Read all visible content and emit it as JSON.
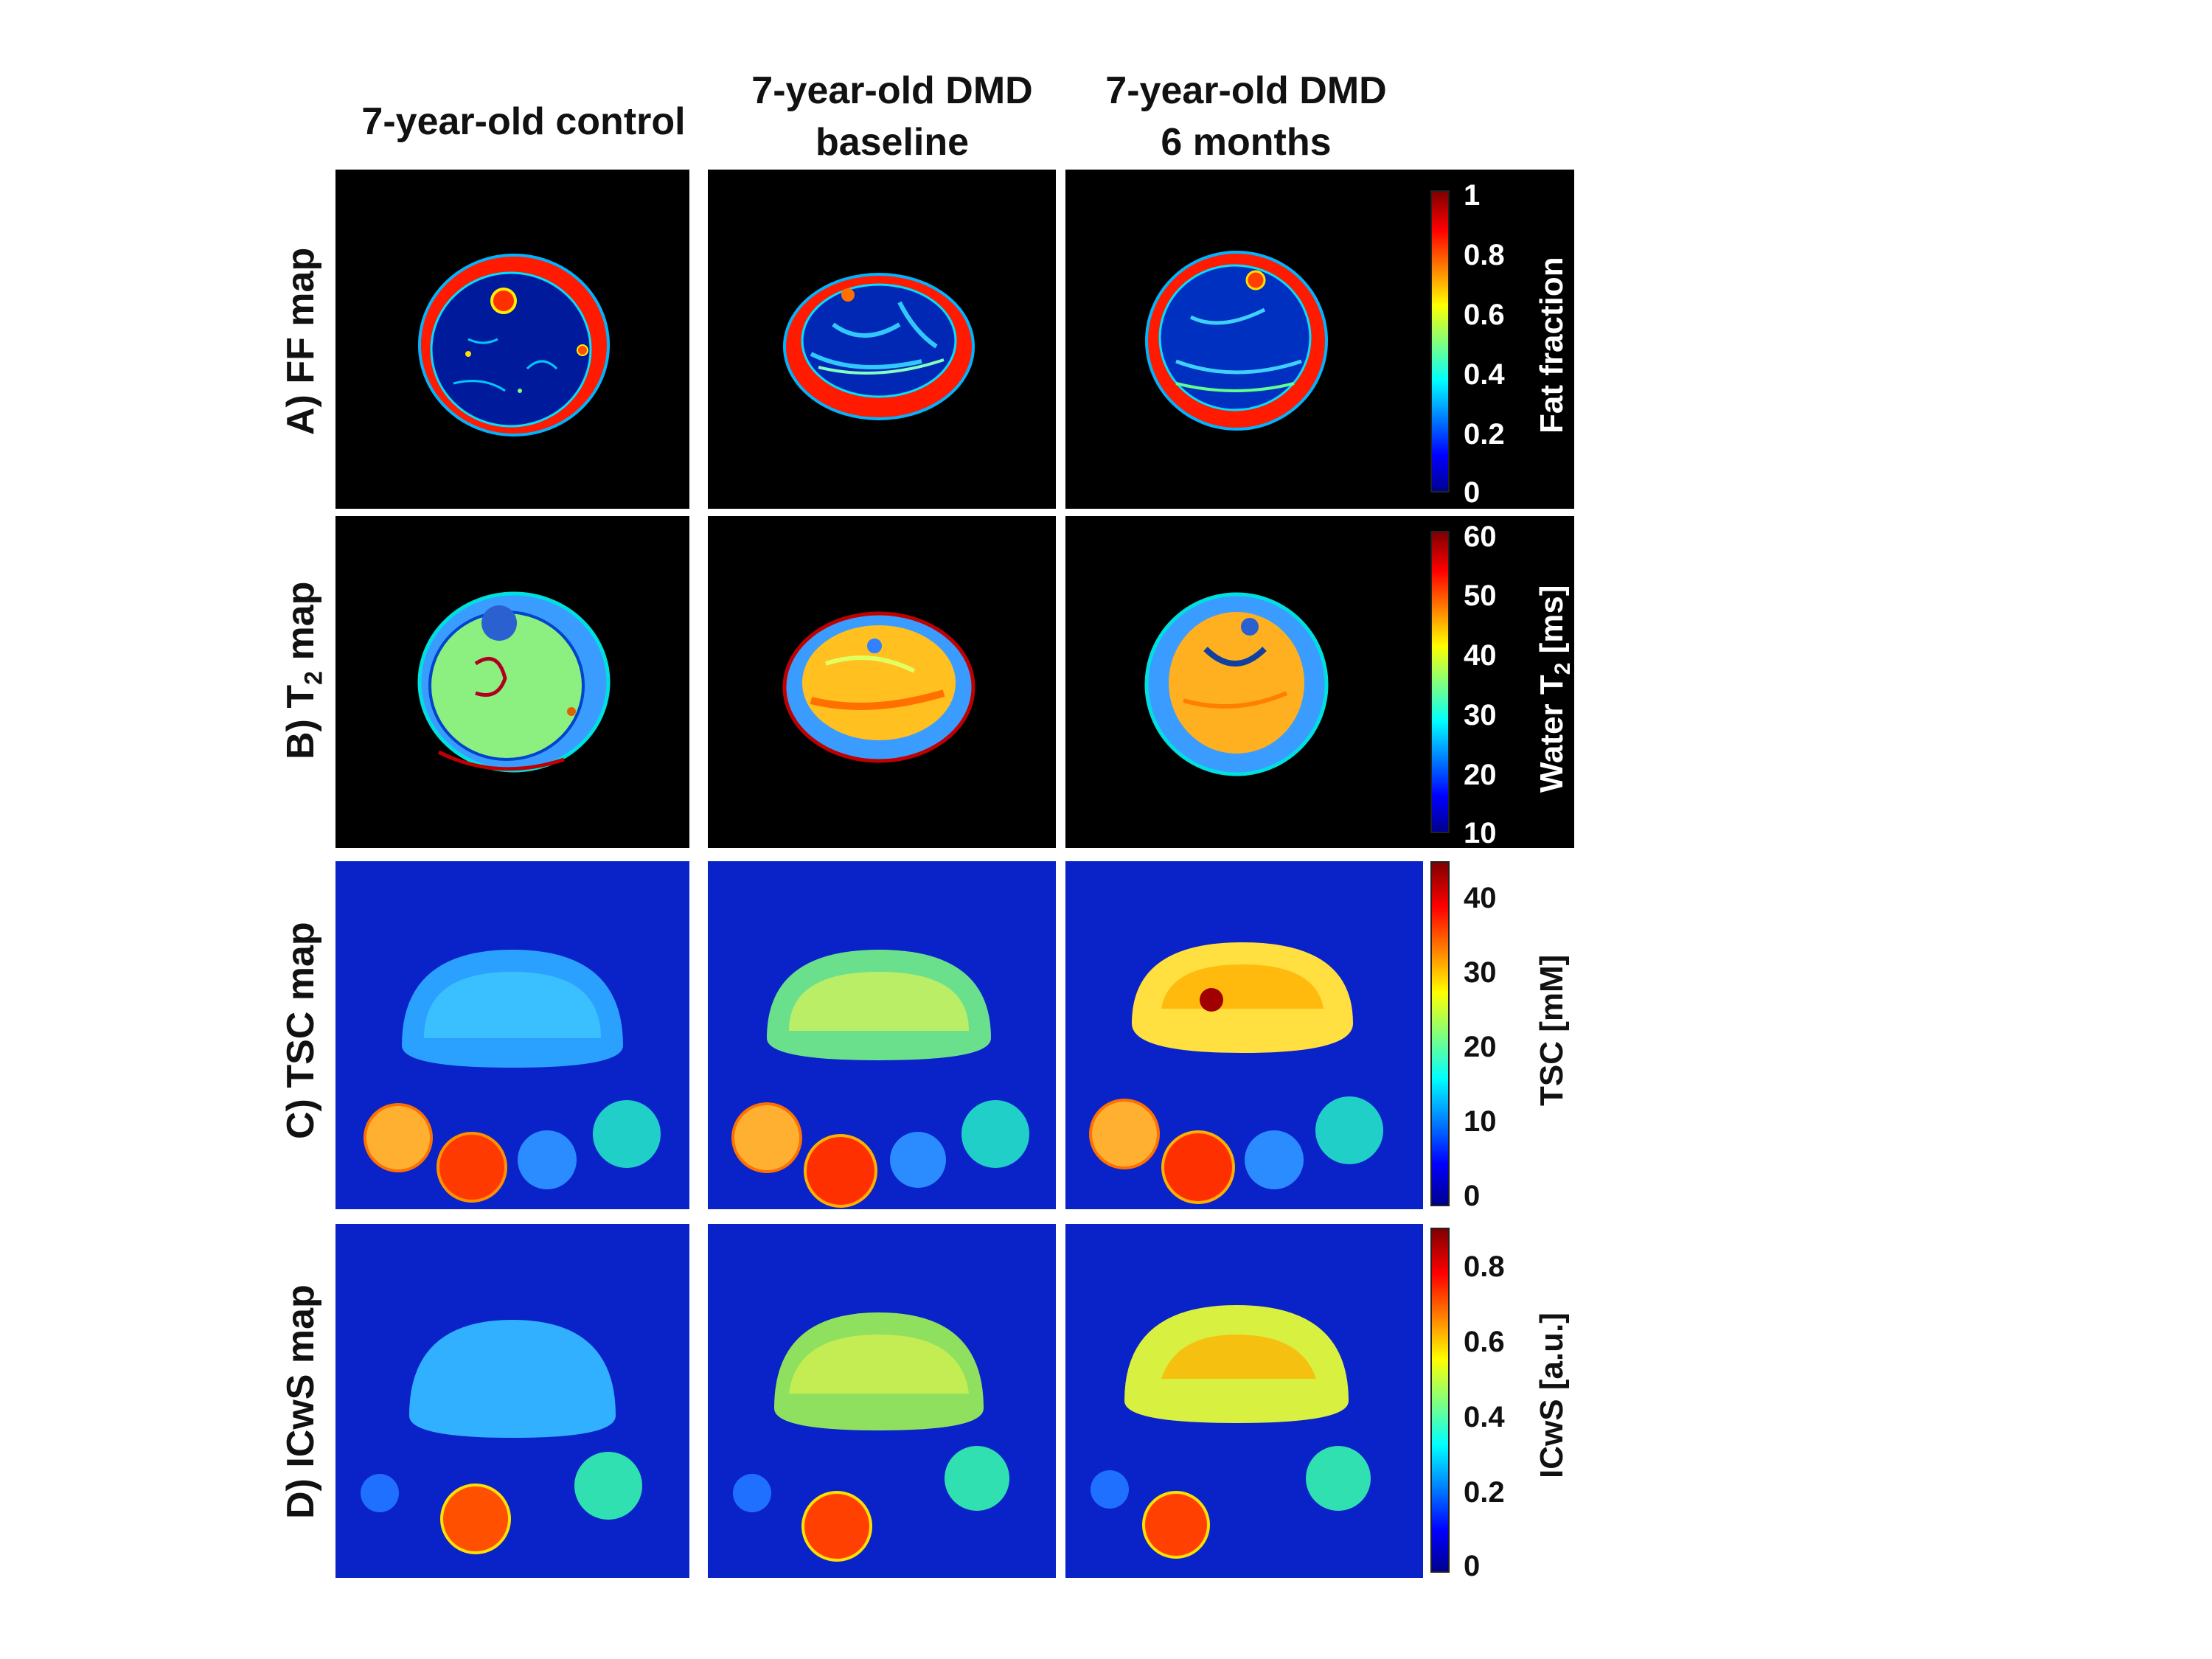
{
  "columns": [
    {
      "line1": "7-year-old control",
      "line2": ""
    },
    {
      "line1": "7-year-old DMD",
      "line2": "baseline"
    },
    {
      "line1": "7-year-old DMD",
      "line2": "6 months"
    }
  ],
  "rows": [
    {
      "label_pre": "A) FF map",
      "label_sub": "",
      "label_post": ""
    },
    {
      "label_pre": "B) T",
      "label_sub": "2",
      "label_post": " map"
    },
    {
      "label_pre": "C) TSC map",
      "label_sub": "",
      "label_post": ""
    },
    {
      "label_pre": "D) ICwS map",
      "label_sub": "",
      "label_post": ""
    }
  ],
  "colorbars": [
    {
      "title_pre": "Fat fraction",
      "title_sub": "",
      "title_post": "",
      "ticks": [
        "1",
        "0.8",
        "0.6",
        "0.4",
        "0.2",
        "0"
      ],
      "tick_color": "light"
    },
    {
      "title_pre": "Water T",
      "title_sub": "2",
      "title_post": " [ms]",
      "ticks": [
        "60",
        "50",
        "40",
        "30",
        "20",
        "10"
      ],
      "tick_color": "light"
    },
    {
      "title_pre": "TSC [mM]",
      "title_sub": "",
      "title_post": "",
      "ticks": [
        "40",
        "30",
        "20",
        "10",
        "0"
      ],
      "tick_color": "dark"
    },
    {
      "title_pre": "ICwS [a.u.]",
      "title_sub": "",
      "title_post": "",
      "ticks": [
        "0.8",
        "0.6",
        "0.4",
        "0.2",
        "0"
      ],
      "tick_color": "dark"
    }
  ],
  "colormap": "jet",
  "colors": {
    "jet_dark_blue": "#00008f",
    "jet_blue": "#0000ff",
    "jet_cyan": "#00ffff",
    "jet_yellow": "#ffff00",
    "jet_red": "#ff0000",
    "jet_dark_red": "#800000",
    "panel_black": "#000000",
    "sodium_background": "#0a23c8"
  }
}
